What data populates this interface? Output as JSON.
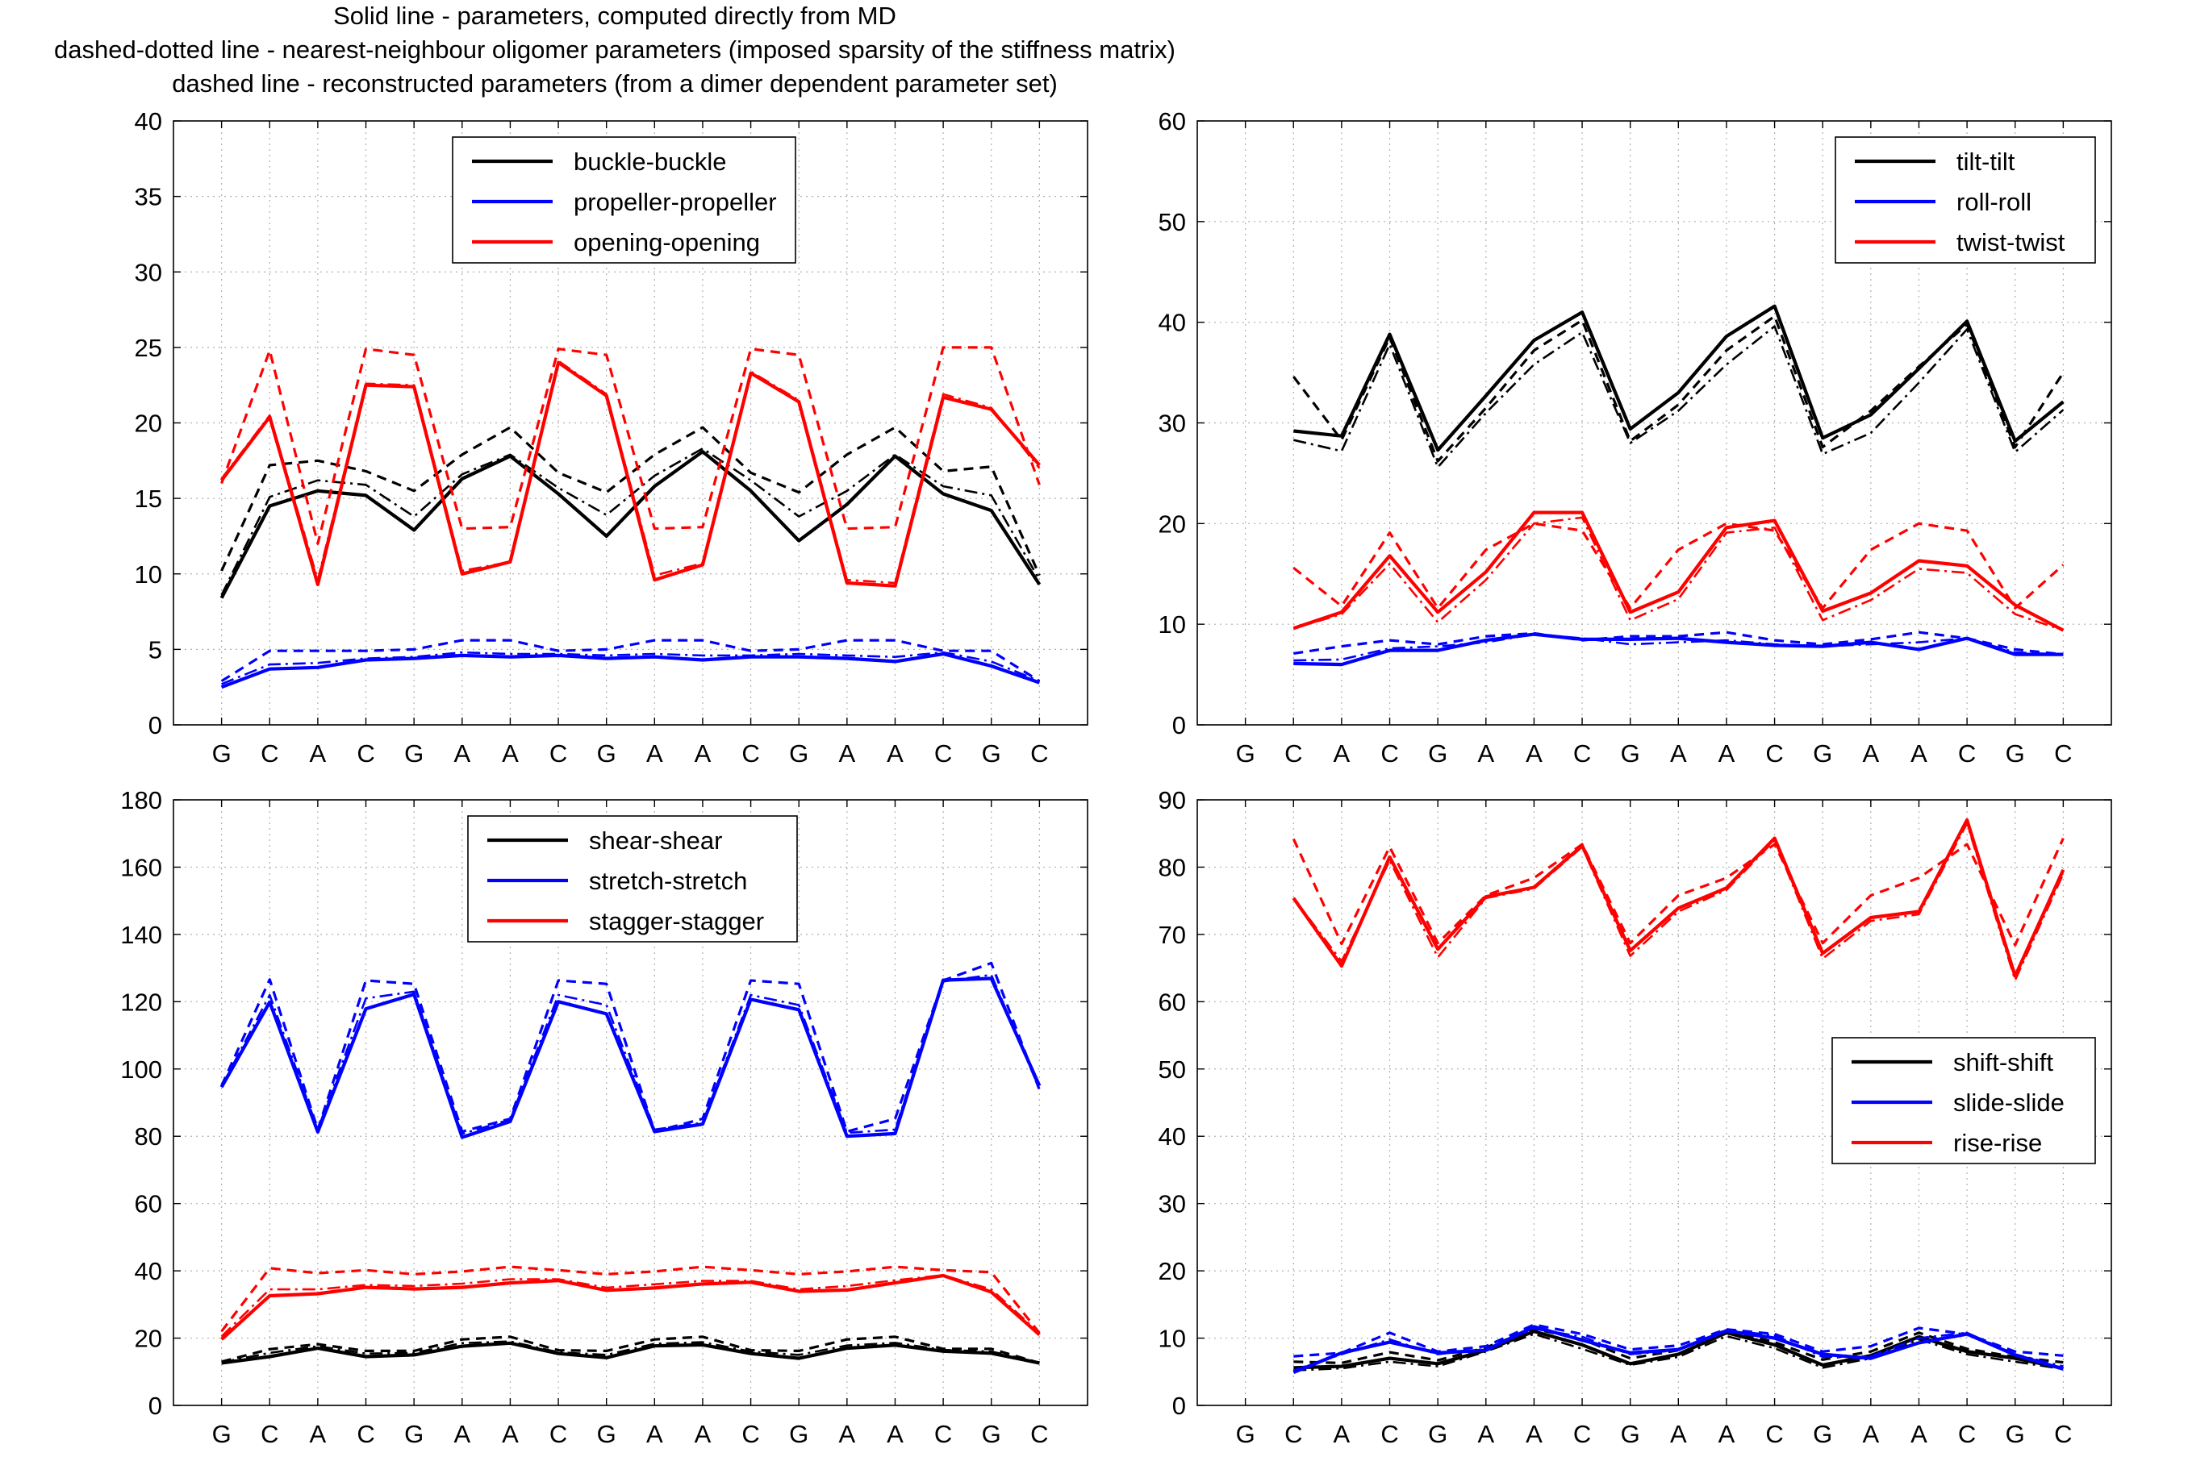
{
  "title_lines": [
    "Solid line - parameters, computed directly from MD",
    "dashed-dotted line - nearest-neighbour oligomer parameters (imposed sparsity of the stiffness matrix)",
    "dashed line - reconstructed parameters (from a dimer dependent parameter set)"
  ],
  "colors": {
    "black": "#000000",
    "blue": "#0000ff",
    "red": "#ff0000"
  },
  "chart_data": [
    {
      "type": "line",
      "panel": "top-left",
      "title": "",
      "xlabel": "",
      "ylabel": "",
      "categories": [
        "G",
        "C",
        "A",
        "C",
        "G",
        "A",
        "A",
        "C",
        "G",
        "A",
        "A",
        "C",
        "G",
        "A",
        "A",
        "C",
        "G",
        "C"
      ],
      "ylim": [
        0,
        40
      ],
      "yticks": [
        0,
        5,
        10,
        15,
        20,
        25,
        30,
        35,
        40
      ],
      "grid": true,
      "legend_position": "top-center",
      "series": [
        {
          "name": "buckle-buckle",
          "color": "#000000",
          "solid": [
            8.4,
            14.5,
            15.5,
            15.2,
            12.9,
            16.3,
            17.8,
            15.3,
            12.5,
            15.8,
            18.1,
            15.5,
            12.2,
            14.6,
            17.8,
            15.3,
            14.2,
            9.3
          ],
          "dashdot": [
            8.6,
            15.1,
            16.2,
            15.9,
            13.8,
            16.6,
            17.9,
            15.7,
            13.9,
            16.5,
            18.3,
            16.2,
            13.8,
            15.5,
            17.9,
            15.8,
            15.2,
            9.6
          ],
          "dashed": [
            10.2,
            17.2,
            17.5,
            16.8,
            15.5,
            17.9,
            19.7,
            16.7,
            15.4,
            17.9,
            19.7,
            16.7,
            15.4,
            17.9,
            19.7,
            16.8,
            17.1,
            9.9
          ]
        },
        {
          "name": "propeller-propeller",
          "color": "#0000ff",
          "solid": [
            2.5,
            3.7,
            3.8,
            4.3,
            4.4,
            4.6,
            4.5,
            4.6,
            4.4,
            4.5,
            4.3,
            4.5,
            4.5,
            4.4,
            4.2,
            4.7,
            3.9,
            2.8
          ],
          "dashdot": [
            2.7,
            4.0,
            4.1,
            4.4,
            4.5,
            4.8,
            4.7,
            4.7,
            4.6,
            4.7,
            4.6,
            4.6,
            4.7,
            4.6,
            4.5,
            4.8,
            4.2,
            2.9
          ],
          "dashed": [
            2.9,
            4.9,
            4.9,
            4.9,
            5.0,
            5.6,
            5.6,
            4.9,
            5.0,
            5.6,
            5.6,
            4.9,
            5.0,
            5.6,
            5.6,
            4.9,
            4.9,
            2.9
          ]
        },
        {
          "name": "opening-opening",
          "color": "#ff0000",
          "solid": [
            16.2,
            20.4,
            9.3,
            22.5,
            22.4,
            10.0,
            10.8,
            24.0,
            21.8,
            9.6,
            10.6,
            23.3,
            21.4,
            9.4,
            9.2,
            21.7,
            20.9,
            17.2
          ],
          "dashdot": [
            16.3,
            20.5,
            9.6,
            22.6,
            22.5,
            10.2,
            10.8,
            24.1,
            21.9,
            9.9,
            10.7,
            23.4,
            21.5,
            9.6,
            9.4,
            21.9,
            21.0,
            17.0
          ],
          "dashed": [
            16.0,
            24.8,
            12.0,
            24.9,
            24.5,
            13.0,
            13.1,
            24.9,
            24.5,
            13.0,
            13.1,
            24.9,
            24.5,
            13.0,
            13.1,
            25.0,
            25.0,
            15.9
          ]
        }
      ]
    },
    {
      "type": "line",
      "panel": "top-right",
      "title": "",
      "xlabel": "",
      "ylabel": "",
      "categories": [
        "G",
        "C",
        "A",
        "C",
        "G",
        "A",
        "A",
        "C",
        "G",
        "A",
        "A",
        "C",
        "G",
        "A",
        "A",
        "C",
        "G",
        "C"
      ],
      "ylim": [
        0,
        60
      ],
      "yticks": [
        0,
        10,
        20,
        30,
        40,
        50,
        60
      ],
      "grid": true,
      "legend_position": "top-right",
      "series": [
        {
          "name": "tilt-tilt",
          "color": "#000000",
          "solid": [
            null,
            29.2,
            28.7,
            38.8,
            27.3,
            32.7,
            38.2,
            41.0,
            29.4,
            33.0,
            38.6,
            41.6,
            28.5,
            30.8,
            35.4,
            40.1,
            28.2,
            32.1
          ],
          "dashdot": [
            null,
            28.3,
            27.2,
            37.8,
            25.6,
            31.0,
            35.8,
            39.0,
            28.0,
            31.2,
            35.8,
            39.6,
            26.9,
            29.0,
            34.0,
            39.3,
            27.1,
            31.3
          ],
          "dashed": [
            null,
            34.6,
            28.3,
            38.5,
            26.2,
            31.5,
            37.2,
            40.2,
            28.2,
            31.8,
            37.2,
            40.6,
            27.6,
            31.2,
            35.6,
            39.8,
            27.6,
            35.0
          ]
        },
        {
          "name": "roll-roll",
          "color": "#0000ff",
          "solid": [
            null,
            6.1,
            6.0,
            7.4,
            7.4,
            8.4,
            9.0,
            8.5,
            8.5,
            8.6,
            8.2,
            7.9,
            7.8,
            8.2,
            7.5,
            8.6,
            7.0,
            7.0
          ],
          "dashdot": [
            null,
            6.4,
            6.5,
            7.6,
            7.8,
            8.2,
            9.0,
            8.6,
            8.0,
            8.2,
            8.4,
            8.0,
            7.8,
            8.0,
            8.2,
            8.6,
            7.2,
            7.0
          ],
          "dashed": [
            null,
            7.1,
            7.8,
            8.4,
            8.0,
            8.8,
            9.1,
            8.4,
            8.8,
            8.8,
            9.2,
            8.4,
            8.0,
            8.5,
            9.2,
            8.6,
            7.5,
            7.0
          ]
        },
        {
          "name": "twist-twist",
          "color": "#ff0000",
          "solid": [
            null,
            9.6,
            11.2,
            16.8,
            11.2,
            15.2,
            21.1,
            21.1,
            11.2,
            13.2,
            19.6,
            20.3,
            11.3,
            13.1,
            16.3,
            15.8,
            11.9,
            9.4
          ],
          "dashdot": [
            null,
            9.6,
            11.0,
            16.0,
            10.2,
            14.4,
            20.0,
            20.6,
            10.4,
            12.5,
            19.1,
            19.6,
            10.4,
            12.4,
            15.5,
            15.1,
            11.0,
            9.4
          ],
          "dashed": [
            null,
            15.6,
            11.8,
            19.1,
            11.6,
            17.4,
            20.0,
            19.3,
            11.6,
            17.4,
            20.0,
            19.3,
            11.6,
            17.4,
            20.0,
            19.3,
            11.6,
            15.9
          ]
        }
      ]
    },
    {
      "type": "line",
      "panel": "bottom-left",
      "title": "",
      "xlabel": "",
      "ylabel": "",
      "categories": [
        "G",
        "C",
        "A",
        "C",
        "G",
        "A",
        "A",
        "C",
        "G",
        "A",
        "A",
        "C",
        "G",
        "A",
        "A",
        "C",
        "G",
        "C"
      ],
      "ylim": [
        0,
        180
      ],
      "yticks": [
        0,
        20,
        40,
        60,
        80,
        100,
        120,
        140,
        160,
        180
      ],
      "grid": true,
      "legend_position": "top-center",
      "series": [
        {
          "name": "shear-shear",
          "color": "#000000",
          "solid": [
            12.6,
            14.5,
            17.0,
            14.5,
            15.0,
            17.6,
            18.5,
            15.4,
            14.2,
            17.7,
            18.0,
            15.4,
            14.0,
            17.0,
            17.9,
            16.1,
            15.5,
            12.6
          ],
          "dashdot": [
            12.8,
            15.6,
            17.6,
            15.4,
            15.6,
            18.5,
            19.0,
            15.8,
            15.0,
            18.3,
            18.8,
            16.0,
            15.0,
            17.8,
            18.6,
            16.5,
            16.0,
            12.8
          ],
          "dashed": [
            13.0,
            16.7,
            18.2,
            16.2,
            16.2,
            19.6,
            20.4,
            16.4,
            16.2,
            19.6,
            20.4,
            16.4,
            16.2,
            19.6,
            20.4,
            16.8,
            16.8,
            12.6
          ]
        },
        {
          "name": "stretch-stretch",
          "color": "#0000ff",
          "solid": [
            94.6,
            119.9,
            81.3,
            117.9,
            122.2,
            79.7,
            84.4,
            120.0,
            116.4,
            81.4,
            83.6,
            120.7,
            117.6,
            80.0,
            80.8,
            126.4,
            126.9,
            95.0
          ],
          "dashdot": [
            94.8,
            122.0,
            82.0,
            121.0,
            123.0,
            80.7,
            85.0,
            122.0,
            119.0,
            82.0,
            84.0,
            122.0,
            119.0,
            81.0,
            82.0,
            126.0,
            128.0,
            94.0
          ],
          "dashed": [
            95.0,
            126.6,
            82.0,
            126.3,
            125.3,
            81.4,
            85.2,
            126.3,
            125.3,
            81.4,
            85.2,
            126.3,
            125.3,
            81.4,
            85.2,
            126.3,
            131.5,
            93.8
          ]
        },
        {
          "name": "stagger-stagger",
          "color": "#ff0000",
          "solid": [
            19.6,
            32.6,
            33.2,
            35.1,
            34.6,
            35.1,
            36.4,
            37.1,
            34.2,
            34.9,
            36.1,
            36.6,
            33.9,
            34.3,
            36.4,
            38.6,
            33.7,
            21.0
          ],
          "dashdot": [
            20.5,
            34.5,
            34.5,
            35.8,
            35.5,
            36.2,
            37.5,
            37.5,
            35.0,
            36.0,
            37.0,
            37.0,
            34.5,
            35.5,
            37.2,
            38.7,
            34.5,
            21.5
          ],
          "dashed": [
            22.0,
            40.8,
            39.3,
            40.2,
            39.0,
            39.8,
            41.2,
            40.2,
            39.0,
            39.8,
            41.2,
            40.2,
            39.0,
            39.8,
            41.2,
            40.2,
            39.6,
            21.5
          ]
        }
      ]
    },
    {
      "type": "line",
      "panel": "bottom-right",
      "title": "",
      "xlabel": "",
      "ylabel": "",
      "categories": [
        "G",
        "C",
        "A",
        "C",
        "G",
        "A",
        "A",
        "C",
        "G",
        "A",
        "A",
        "C",
        "G",
        "A",
        "A",
        "C",
        "G",
        "C"
      ],
      "ylim": [
        0,
        90
      ],
      "yticks": [
        0,
        10,
        20,
        30,
        40,
        50,
        60,
        70,
        80,
        90
      ],
      "grid": true,
      "legend_position": "right",
      "series": [
        {
          "name": "shift-shift",
          "color": "#000000",
          "solid": [
            null,
            5.6,
            5.8,
            7.0,
            6.2,
            8.2,
            11.0,
            9.0,
            6.2,
            7.6,
            10.8,
            9.0,
            6.0,
            7.4,
            10.2,
            8.0,
            7.0,
            5.5
          ],
          "dashdot": [
            null,
            5.2,
            5.5,
            6.5,
            5.8,
            8.0,
            10.6,
            8.4,
            6.0,
            7.2,
            10.3,
            8.5,
            5.6,
            7.0,
            9.8,
            7.6,
            6.5,
            5.4
          ],
          "dashed": [
            null,
            6.5,
            6.3,
            7.9,
            6.7,
            8.6,
            11.4,
            9.8,
            7.0,
            8.2,
            11.2,
            9.4,
            6.8,
            8.0,
            10.8,
            8.4,
            7.2,
            6.4
          ]
        },
        {
          "name": "slide-slide",
          "color": "#0000ff",
          "solid": [
            null,
            4.9,
            7.8,
            9.4,
            7.8,
            8.2,
            11.7,
            9.7,
            7.8,
            8.3,
            11.1,
            10.0,
            7.6,
            7.0,
            9.3,
            10.6,
            7.5,
            5.4
          ],
          "dashdot": [
            null,
            5.2,
            7.6,
            9.8,
            7.6,
            8.4,
            11.4,
            10.2,
            7.6,
            8.2,
            11.2,
            10.4,
            7.2,
            7.3,
            10.0,
            10.8,
            7.6,
            5.8
          ],
          "dashed": [
            null,
            7.3,
            7.8,
            10.8,
            8.0,
            8.8,
            12.0,
            10.6,
            8.3,
            8.9,
            11.3,
            10.6,
            8.0,
            8.8,
            11.5,
            10.6,
            8.0,
            7.4
          ]
        },
        {
          "name": "rise-rise",
          "color": "#ff0000",
          "solid": [
            null,
            75.4,
            65.3,
            81.5,
            67.8,
            75.6,
            77.0,
            83.2,
            67.6,
            73.9,
            76.9,
            84.3,
            67.2,
            72.5,
            73.4,
            87.0,
            63.8,
            79.6
          ],
          "dashdot": [
            null,
            75.4,
            66.0,
            81.0,
            66.6,
            75.4,
            76.8,
            83.0,
            66.8,
            73.4,
            76.6,
            84.0,
            66.4,
            72.0,
            73.0,
            86.5,
            63.2,
            79.0
          ],
          "dashed": [
            null,
            84.2,
            68.6,
            83.0,
            68.7,
            75.8,
            78.4,
            83.4,
            68.7,
            75.8,
            78.4,
            83.4,
            68.7,
            75.8,
            78.4,
            83.4,
            68.4,
            84.3
          ]
        }
      ]
    }
  ]
}
